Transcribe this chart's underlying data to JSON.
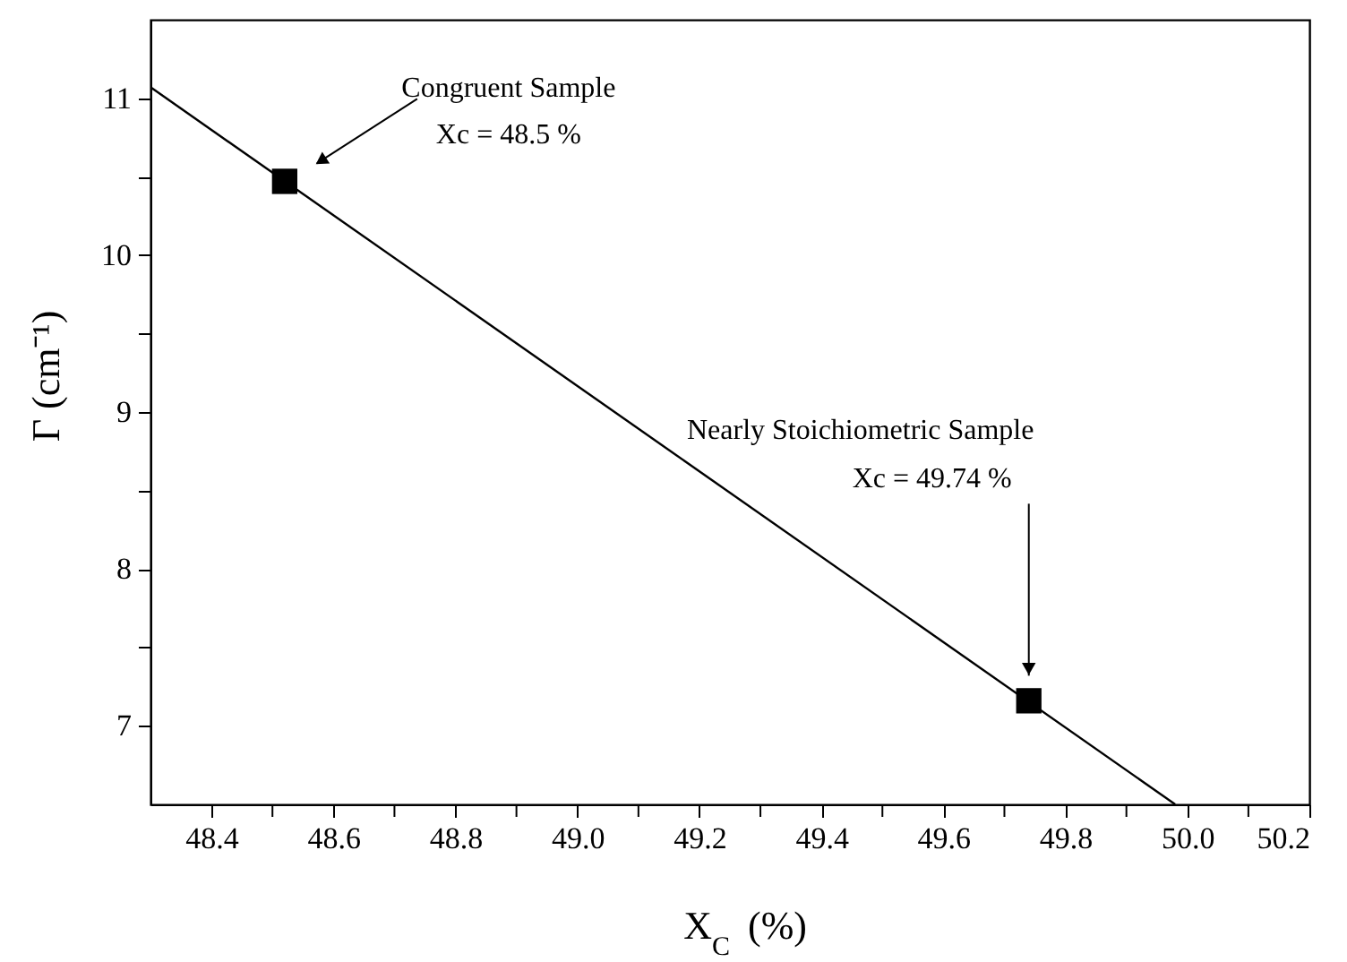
{
  "chart_data": {
    "type": "scatter",
    "xlabel": "X$_{C}$ (%)",
    "ylabel": "Γ  (cm⁻¹)",
    "xlim": [
      48.3,
      50.2
    ],
    "xticks": [
      {
        "value": 48.4,
        "label": "48.4"
      },
      {
        "value": 48.5,
        "label": null
      },
      {
        "value": 48.6,
        "label": "48.6"
      },
      {
        "value": 48.7,
        "label": null
      },
      {
        "value": 48.8,
        "label": "48.8"
      },
      {
        "value": 48.9,
        "label": null
      },
      {
        "value": 49.0,
        "label": "49.0"
      },
      {
        "value": 49.1,
        "label": null
      },
      {
        "value": 49.2,
        "label": "49.2"
      },
      {
        "value": 49.3,
        "label": null
      },
      {
        "value": 49.4,
        "label": "49.4"
      },
      {
        "value": 49.5,
        "label": null
      },
      {
        "value": 49.6,
        "label": "49.6"
      },
      {
        "value": 49.7,
        "label": null
      },
      {
        "value": 49.8,
        "label": "49.8"
      },
      {
        "value": 49.9,
        "label": null
      },
      {
        "value": 50.0,
        "label": "50.0"
      },
      {
        "value": 50.1,
        "label": null
      },
      {
        "value": 50.2,
        "label": "50.2"
      }
    ],
    "ylim": [
      6.5,
      11.5
    ],
    "yticks": [
      7,
      {
        "value": 7.5,
        "label": null
      },
      8,
      {
        "value": 8.5,
        "label": null
      },
      9,
      {
        "value": 9.5,
        "label": null
      },
      10,
      {
        "value": 10.5,
        "label": null
      },
      11
    ],
    "grid": false,
    "marker": "square",
    "series": [
      {
        "type": "line",
        "marker": "none",
        "color": "#000000",
        "x": [
          48.3,
          49.98
        ],
        "values": [
          11.07,
          6.5
        ]
      },
      {
        "color": "#000000",
        "x": [
          48.52,
          49.74
        ],
        "values": [
          10.47,
          7.16
        ]
      }
    ],
    "annotations": [
      "Congruent Sample",
      "Xc = 48.5 %",
      "Nearly Stoichiometric Sample",
      "Xc = 49.74 %"
    ]
  }
}
